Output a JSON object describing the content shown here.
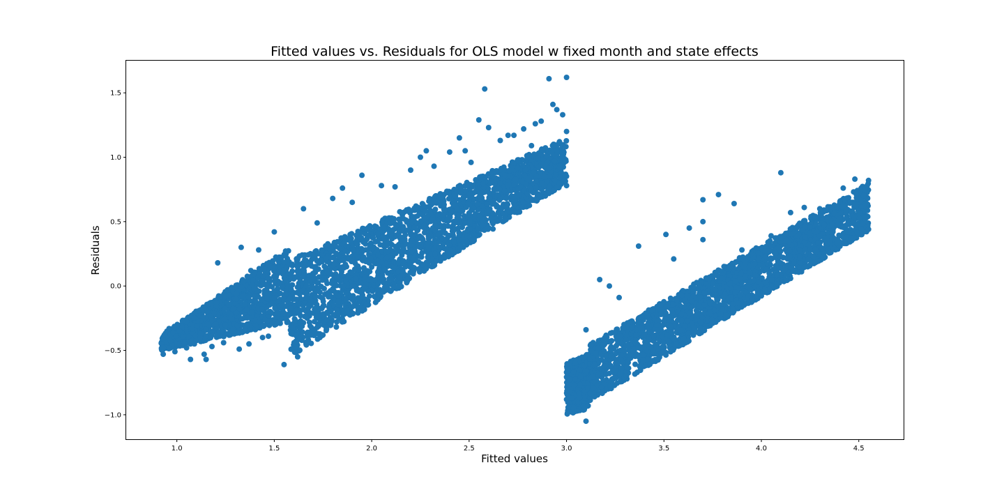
{
  "chart_data": {
    "type": "scatter",
    "title": "Fitted values vs. Residuals for OLS model w fixed month and state effects",
    "xlabel": "Fitted values",
    "ylabel": "Residuals",
    "xlim": [
      0.74,
      4.73
    ],
    "ylim": [
      -1.19,
      1.75
    ],
    "x_ticks": [
      1.0,
      1.5,
      2.0,
      2.5,
      3.0,
      3.5,
      4.0,
      4.5
    ],
    "x_tick_labels": [
      "1.0",
      "1.5",
      "2.0",
      "2.5",
      "3.0",
      "3.5",
      "4.0",
      "4.5"
    ],
    "y_ticks": [
      -1.0,
      -0.5,
      0.0,
      0.5,
      1.0,
      1.5
    ],
    "y_tick_labels": [
      "−1.0",
      "−0.5",
      "0.0",
      "0.5",
      "1.0",
      "1.5"
    ],
    "grid": false,
    "color": "#1f77b4",
    "cluster_bands": [
      {
        "x_range": [
          0.92,
          1.58
        ],
        "residual_low_at_start": -0.5,
        "residual_high_at_start": -0.38,
        "residual_low_at_end": -0.28,
        "residual_high_at_end": 0.3
      },
      {
        "x_range": [
          1.58,
          3.0
        ],
        "residual_low_at_start": -0.55,
        "residual_high_at_start": 0.2,
        "residual_low_at_end": 0.8,
        "residual_high_at_end": 1.15
      },
      {
        "x_range": [
          3.0,
          3.12
        ],
        "residual_low_at_start": -1.0,
        "residual_high_at_start": -0.6,
        "residual_low_at_end": -0.95,
        "residual_high_at_end": -0.52
      },
      {
        "x_range": [
          3.12,
          4.55
        ],
        "residual_low_at_start": -0.9,
        "residual_high_at_start": -0.45,
        "residual_low_at_end": 0.43,
        "residual_high_at_end": 0.8
      }
    ],
    "points": [
      [
        0.93,
        -0.48
      ],
      [
        0.93,
        -0.53
      ],
      [
        0.96,
        -0.48
      ],
      [
        0.96,
        -0.33
      ],
      [
        0.99,
        -0.51
      ],
      [
        1.05,
        -0.48
      ],
      [
        1.07,
        -0.57
      ],
      [
        1.09,
        -0.45
      ],
      [
        1.12,
        -0.4
      ],
      [
        1.14,
        -0.53
      ],
      [
        1.15,
        -0.57
      ],
      [
        1.18,
        -0.47
      ],
      [
        1.21,
        0.18
      ],
      [
        1.24,
        -0.44
      ],
      [
        1.27,
        -0.07
      ],
      [
        1.32,
        -0.49
      ],
      [
        1.33,
        0.3
      ],
      [
        1.37,
        -0.45
      ],
      [
        1.38,
        0.12
      ],
      [
        1.42,
        0.28
      ],
      [
        1.44,
        -0.4
      ],
      [
        1.47,
        -0.39
      ],
      [
        1.5,
        0.42
      ],
      [
        1.55,
        -0.61
      ],
      [
        1.62,
        -0.55
      ],
      [
        1.65,
        0.6
      ],
      [
        1.72,
        0.49
      ],
      [
        1.75,
        -0.38
      ],
      [
        1.8,
        0.68
      ],
      [
        1.85,
        0.76
      ],
      [
        1.9,
        0.65
      ],
      [
        1.95,
        0.86
      ],
      [
        2.05,
        0.78
      ],
      [
        2.12,
        0.77
      ],
      [
        2.2,
        0.9
      ],
      [
        2.25,
        1.0
      ],
      [
        2.28,
        1.05
      ],
      [
        2.32,
        0.93
      ],
      [
        2.4,
        1.04
      ],
      [
        2.45,
        1.15
      ],
      [
        2.48,
        1.05
      ],
      [
        2.51,
        0.96
      ],
      [
        2.55,
        1.29
      ],
      [
        2.58,
        1.53
      ],
      [
        2.6,
        1.23
      ],
      [
        2.62,
        0.85
      ],
      [
        2.66,
        1.13
      ],
      [
        2.7,
        1.17
      ],
      [
        2.73,
        1.17
      ],
      [
        2.78,
        1.22
      ],
      [
        2.82,
        1.09
      ],
      [
        2.84,
        1.26
      ],
      [
        2.87,
        1.28
      ],
      [
        2.91,
        1.61
      ],
      [
        2.93,
        1.41
      ],
      [
        2.95,
        1.37
      ],
      [
        2.98,
        1.33
      ],
      [
        3.0,
        1.62
      ],
      [
        3.0,
        1.2
      ],
      [
        3.0,
        0.78
      ],
      [
        3.1,
        -0.34
      ],
      [
        3.1,
        -1.05
      ],
      [
        3.15,
        -0.52
      ],
      [
        3.17,
        0.05
      ],
      [
        3.22,
        0.0
      ],
      [
        3.27,
        -0.09
      ],
      [
        3.37,
        0.31
      ],
      [
        3.51,
        0.4
      ],
      [
        3.55,
        0.21
      ],
      [
        3.63,
        0.45
      ],
      [
        3.7,
        0.67
      ],
      [
        3.7,
        0.5
      ],
      [
        3.7,
        0.36
      ],
      [
        3.78,
        0.71
      ],
      [
        3.86,
        0.64
      ],
      [
        3.9,
        0.28
      ],
      [
        4.05,
        0.39
      ],
      [
        4.1,
        0.88
      ],
      [
        4.15,
        0.57
      ],
      [
        4.22,
        0.61
      ],
      [
        4.3,
        0.6
      ],
      [
        4.42,
        0.76
      ],
      [
        4.48,
        0.83
      ],
      [
        4.55,
        0.82
      ],
      [
        4.55,
        0.44
      ]
    ]
  }
}
